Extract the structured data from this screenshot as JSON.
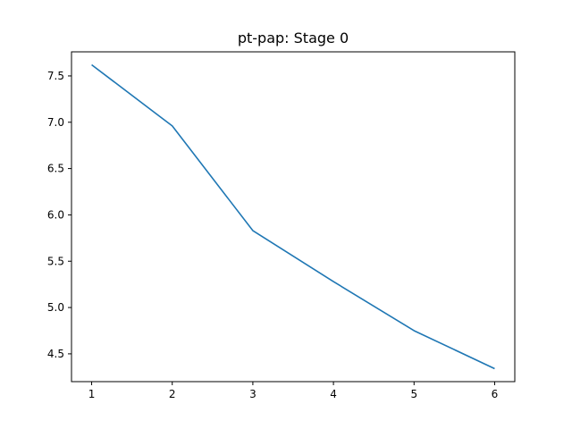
{
  "chart_data": {
    "type": "line",
    "title": "pt-pap: Stage 0",
    "xlabel": "",
    "ylabel": "",
    "x": [
      1,
      2,
      3,
      4,
      5,
      6
    ],
    "series": [
      {
        "values": [
          7.62,
          6.96,
          5.83,
          5.28,
          4.75,
          4.34
        ],
        "color": "#1f77b4"
      }
    ],
    "xlim": [
      0.75,
      6.25
    ],
    "ylim": [
      4.2,
      7.76
    ],
    "xticks": [
      1,
      2,
      3,
      4,
      5,
      6
    ],
    "yticks": [
      4.5,
      5.0,
      5.5,
      6.0,
      6.5,
      7.0,
      7.5
    ],
    "xtick_labels": [
      "1",
      "2",
      "3",
      "4",
      "5",
      "6"
    ],
    "ytick_labels": [
      "4.5",
      "5.0",
      "5.5",
      "6.0",
      "6.5",
      "7.0",
      "7.5"
    ],
    "grid": false,
    "legend": "none"
  }
}
